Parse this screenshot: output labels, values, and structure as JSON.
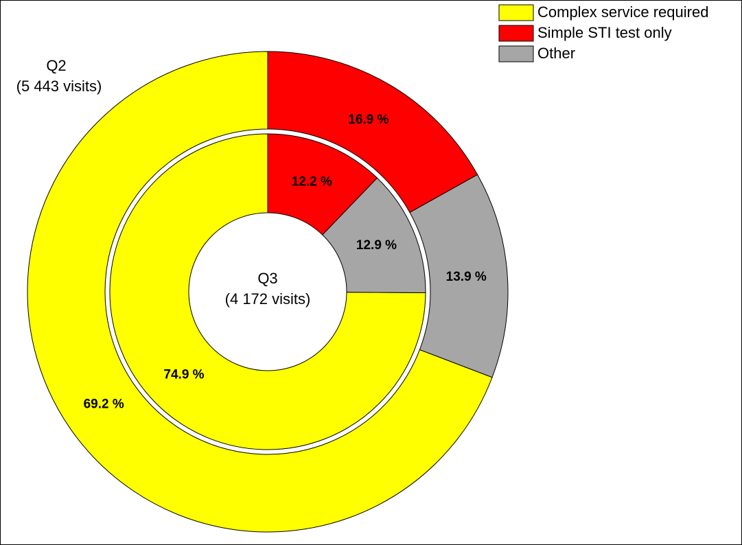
{
  "chart_data": {
    "type": "donut",
    "categories": [
      "Complex service required",
      "Simple STI test only",
      "Other"
    ],
    "colors": [
      "#ffff00",
      "#ff0000",
      "#a6a6a6"
    ],
    "series": [
      {
        "name": "Q2",
        "visits_label": "(5 443 visits)",
        "values": [
          69.2,
          16.9,
          13.9
        ],
        "value_labels": [
          "69.2 %",
          "16.9 %",
          "13.9 %"
        ]
      },
      {
        "name": "Q3",
        "visits_label": "(4 172 visits)",
        "values": [
          74.9,
          12.2,
          12.9
        ],
        "value_labels": [
          "74.9 %",
          "12.2 %",
          "12.9 %"
        ]
      }
    ],
    "legend": "top-right"
  }
}
